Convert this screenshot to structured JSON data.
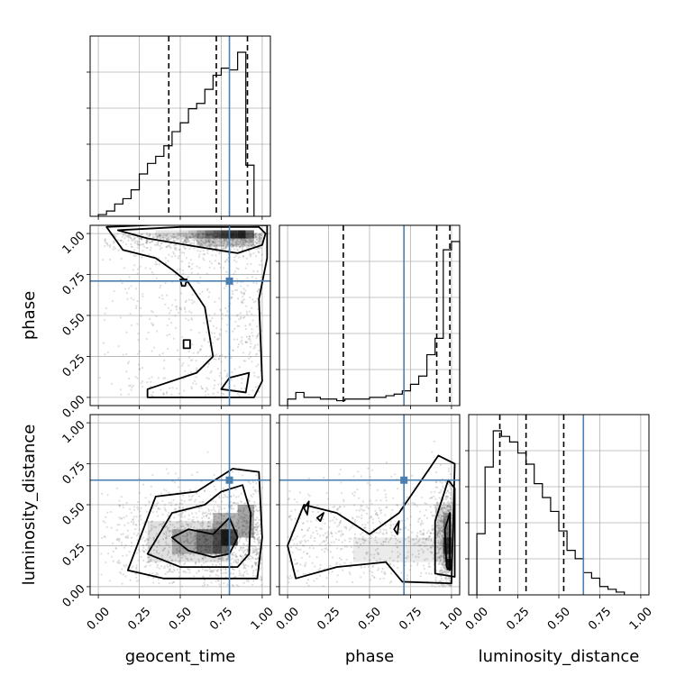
{
  "chart_data": {
    "type": "corner",
    "parameters": [
      "geocent_time",
      "phase",
      "luminosity_distance"
    ],
    "labels": {
      "geocent_time": "geocent_time",
      "phase": "phase",
      "luminosity_distance": "luminosity_distance"
    },
    "range": [
      -0.05,
      1.05
    ],
    "ticks": [
      0.0,
      0.25,
      0.5,
      0.75,
      1.0
    ],
    "tick_labels": [
      "0.00",
      "0.25",
      "0.50",
      "0.75",
      "1.00"
    ],
    "truths": {
      "geocent_time": 0.8,
      "phase": 0.71,
      "luminosity_distance": 0.65
    },
    "quantiles": {
      "geocent_time": [
        0.43,
        0.72,
        0.91
      ],
      "phase": [
        0.34,
        0.91,
        0.99
      ],
      "luminosity_distance": [
        0.14,
        0.3,
        0.53
      ]
    },
    "histograms": {
      "geocent_time": {
        "edges_start": 0.0,
        "bin_width": 0.05,
        "counts": [
          1,
          3,
          7,
          10,
          15,
          24,
          30,
          34,
          40,
          48,
          53,
          61,
          64,
          72,
          80,
          84,
          83,
          93,
          29
        ]
      },
      "phase": {
        "edges_start": 0.0,
        "bin_width": 0.05,
        "counts": [
          4,
          8,
          5,
          5,
          4,
          4,
          3,
          4,
          4,
          4,
          5,
          5,
          6,
          7,
          9,
          13,
          18,
          31,
          41,
          95,
          100
        ]
      },
      "luminosity_distance": {
        "edges_start": 0.0,
        "bin_width": 0.05,
        "counts": [
          22,
          46,
          59,
          57,
          55,
          51,
          47,
          40,
          35,
          30,
          23,
          16,
          13,
          8,
          6,
          3,
          2,
          1
        ]
      }
    },
    "grid": true
  }
}
